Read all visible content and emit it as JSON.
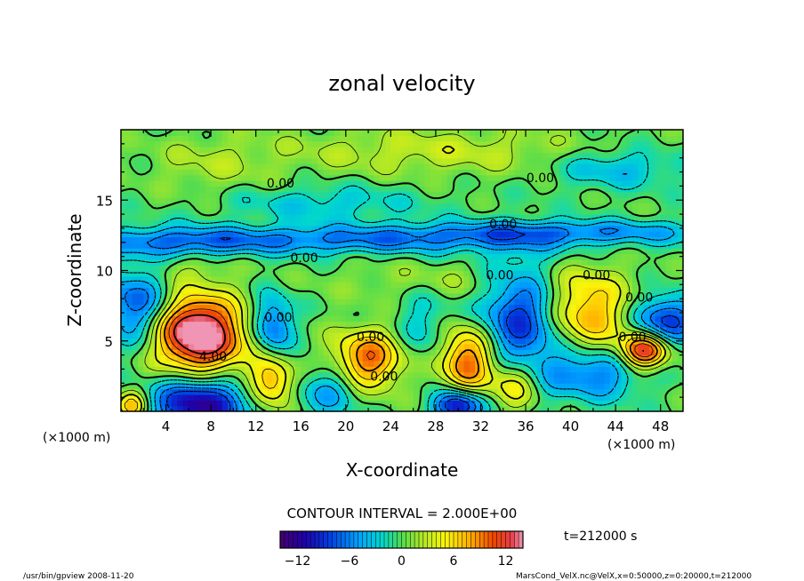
{
  "chart_data": {
    "type": "heatmap",
    "title": "zonal velocity",
    "xlabel": "X-coordinate",
    "ylabel": "Z-coordinate",
    "x_units": "(×1000 m)",
    "xlim": [
      0,
      50
    ],
    "ylim": [
      0,
      20
    ],
    "x_ticks": [
      4,
      8,
      12,
      16,
      20,
      24,
      28,
      32,
      36,
      40,
      44,
      48
    ],
    "y_ticks": [
      5,
      10,
      15
    ],
    "contour_interval_text": "CONTOUR INTERVAL = 2.000E+00",
    "time_text": "t=212000 s",
    "colorbar": {
      "range": [
        -14,
        14
      ],
      "ticks": [
        -12,
        -6,
        0,
        6,
        12
      ]
    },
    "contour_labels": [
      {
        "x": 14.2,
        "z": 16.2,
        "text": "0.00"
      },
      {
        "x": 37.3,
        "z": 16.6,
        "text": "0.00"
      },
      {
        "x": 34.0,
        "z": 13.3,
        "text": "0.00"
      },
      {
        "x": 16.3,
        "z": 10.9,
        "text": "0.00"
      },
      {
        "x": 33.7,
        "z": 9.7,
        "text": "0.00"
      },
      {
        "x": 42.3,
        "z": 9.7,
        "text": "0.00"
      },
      {
        "x": 46.1,
        "z": 8.1,
        "text": "0.00"
      },
      {
        "x": 14.0,
        "z": 6.7,
        "text": "0.00"
      },
      {
        "x": 22.2,
        "z": 5.3,
        "text": "0.00"
      },
      {
        "x": 23.4,
        "z": 2.5,
        "text": "0.00"
      },
      {
        "x": 8.2,
        "z": 3.9,
        "text": "4.00"
      },
      {
        "x": 45.5,
        "z": 5.3,
        "text": "0.00"
      }
    ],
    "features": [
      {
        "x": 6.5,
        "z": 5.8,
        "value": 13,
        "sx": 2.6,
        "sz": 1.8
      },
      {
        "x": 8.0,
        "z": 4.5,
        "value": 5,
        "sx": 3.5,
        "sz": 2.2
      },
      {
        "x": 22.0,
        "z": 3.7,
        "value": 10,
        "sx": 2.2,
        "sz": 1.5
      },
      {
        "x": 30.8,
        "z": 3.7,
        "value": 11,
        "sx": 1.7,
        "sz": 1.7
      },
      {
        "x": 13.5,
        "z": 2.1,
        "value": 8,
        "sx": 1.4,
        "sz": 1.3
      },
      {
        "x": 35.0,
        "z": 2.0,
        "value": 7,
        "sx": 1.5,
        "sz": 1.3
      },
      {
        "x": 41.5,
        "z": 7.0,
        "value": 8,
        "sx": 2.5,
        "sz": 2.0
      },
      {
        "x": 46.5,
        "z": 4.3,
        "value": 13,
        "sx": 1.5,
        "sz": 0.9
      },
      {
        "x": 1.0,
        "z": 0.4,
        "value": 8,
        "sx": 1.0,
        "sz": 0.8
      },
      {
        "x": 7.0,
        "z": 0.6,
        "value": -13,
        "sx": 3.0,
        "sz": 1.4
      },
      {
        "x": 30.0,
        "z": 0.4,
        "value": -12,
        "sx": 1.5,
        "sz": 0.8
      },
      {
        "x": 1.5,
        "z": 7.5,
        "value": -8,
        "sx": 2.2,
        "sz": 2.0
      },
      {
        "x": 13.5,
        "z": 6.0,
        "value": -8,
        "sx": 1.3,
        "sz": 1.6
      },
      {
        "x": 35.5,
        "z": 6.5,
        "value": -9,
        "sx": 2.5,
        "sz": 3.0
      },
      {
        "x": 42.0,
        "z": 2.8,
        "value": -7,
        "sx": 3.0,
        "sz": 1.3
      },
      {
        "x": 48.5,
        "z": 6.5,
        "value": -9,
        "sx": 2.0,
        "sz": 1.2
      },
      {
        "x": 18.5,
        "z": 1.5,
        "value": -5,
        "sx": 2.0,
        "sz": 1.3
      },
      {
        "x": 27.0,
        "z": 6.0,
        "value": -3,
        "sx": 2.0,
        "sz": 2.0
      },
      {
        "x": 20.0,
        "z": 12.2,
        "value": -6,
        "sx": 14.0,
        "sz": 0.7
      },
      {
        "x": 5.0,
        "z": 12.0,
        "value": -4,
        "sx": 5.0,
        "sz": 0.8
      },
      {
        "x": 40.0,
        "z": 12.8,
        "value": -5,
        "sx": 10.0,
        "sz": 0.6
      },
      {
        "x": 44.0,
        "z": 17.3,
        "value": -4,
        "sx": 4.0,
        "sz": 1.0
      },
      {
        "x": 18.0,
        "z": 14.8,
        "value": -3,
        "sx": 6.0,
        "sz": 0.9
      },
      {
        "x": 8.0,
        "z": 17.5,
        "value": 2,
        "sx": 4.0,
        "sz": 1.5
      },
      {
        "x": 28.0,
        "z": 18.5,
        "value": 3,
        "sx": 10.0,
        "sz": 1.2
      },
      {
        "x": 30.0,
        "z": 9.3,
        "value": 2,
        "sx": 8.0,
        "sz": 1.0
      },
      {
        "x": 5.0,
        "z": 10.2,
        "value": 2,
        "sx": 3.0,
        "sz": 0.8
      }
    ]
  },
  "footer": {
    "left": "/usr/bin/gpview   2008-11-20",
    "right": "MarsCond_VelX.nc@VelX,x=0:50000,z=0:20000,t=212000"
  }
}
